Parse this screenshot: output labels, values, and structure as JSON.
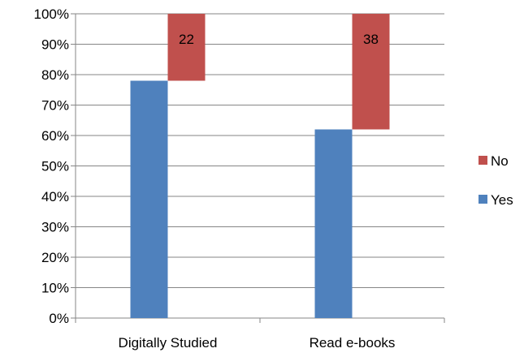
{
  "chart_data": {
    "type": "bar",
    "stacked": "floating",
    "categories": [
      "Digitally Studied",
      "Read e-books"
    ],
    "series": [
      {
        "name": "Yes",
        "values": [
          78,
          62
        ],
        "color": "#4F81BD",
        "show_labels": false
      },
      {
        "name": "No",
        "values": [
          22,
          38
        ],
        "color": "#C0504D",
        "show_labels": true
      }
    ],
    "ylim": [
      0,
      100
    ],
    "yticks": [
      "0%",
      "10%",
      "20%",
      "30%",
      "40%",
      "50%",
      "60%",
      "70%",
      "80%",
      "90%",
      "100%"
    ],
    "grid": true,
    "legend_position": "right",
    "legend_order": [
      "No",
      "Yes"
    ],
    "title": "",
    "xlabel": "",
    "ylabel": ""
  }
}
